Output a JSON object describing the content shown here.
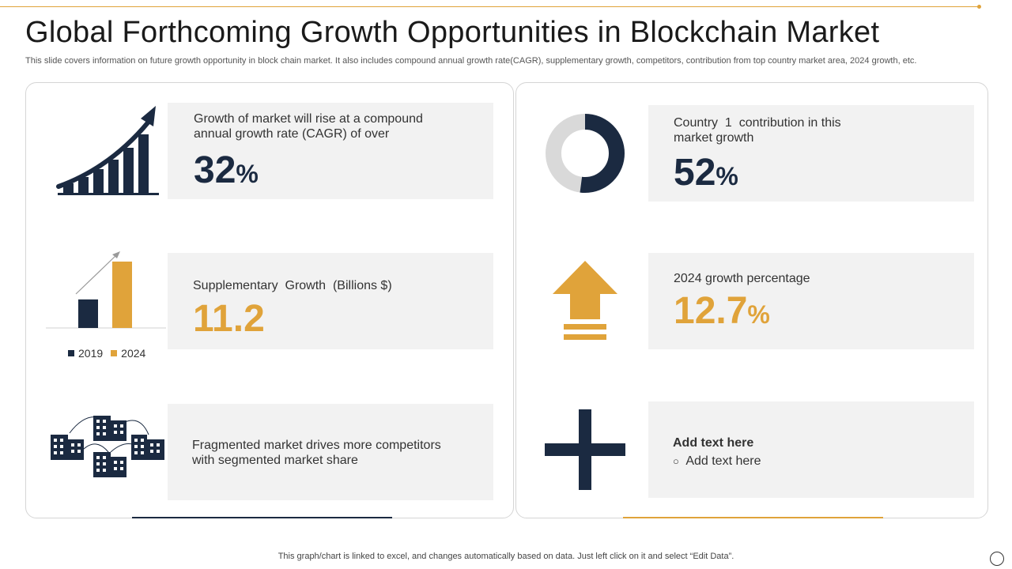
{
  "header": {
    "title": "Global Forthcoming Growth Opportunities in Blockchain Market",
    "subtitle": "This slide covers information on future growth opportunity in block chain market. It also includes compound annual growth rate(CAGR), supplementary growth, competitors, contribution from top country market area, 2024 growth, etc."
  },
  "left_panel": {
    "cagr": {
      "text": "Growth of market will rise at a compound annual growth rate (CAGR) of over",
      "value": "32",
      "unit": "%"
    },
    "supplementary": {
      "text": "Supplementary  Growth  (Billions $)",
      "value": "11.2",
      "legend": [
        "2019",
        "2024"
      ],
      "bar_values": {
        "2019": 0.43,
        "2024": 1.0
      }
    },
    "fragmented": {
      "text": "Fragmented market drives more competitors with segmented market share"
    }
  },
  "right_panel": {
    "country": {
      "text": "Country  1  contribution in this market growth",
      "value": "52",
      "unit": "%",
      "donut_fraction": 0.52
    },
    "growth_2024": {
      "text": "2024 growth percentage",
      "value": "12.7",
      "unit": "%"
    },
    "add_text": {
      "heading": "Add text here",
      "bullet_symbol": "○",
      "bullet": "Add text here"
    }
  },
  "footer": {
    "note": "This graph/chart is linked to excel,  and changes automatically based on data. Just left click on it and select “Edit Data”."
  },
  "colors": {
    "navy": "#1b2a41",
    "gold": "#e0a33a",
    "card_bg": "#f2f2f2",
    "donut_rest": "#d9d9d9"
  }
}
